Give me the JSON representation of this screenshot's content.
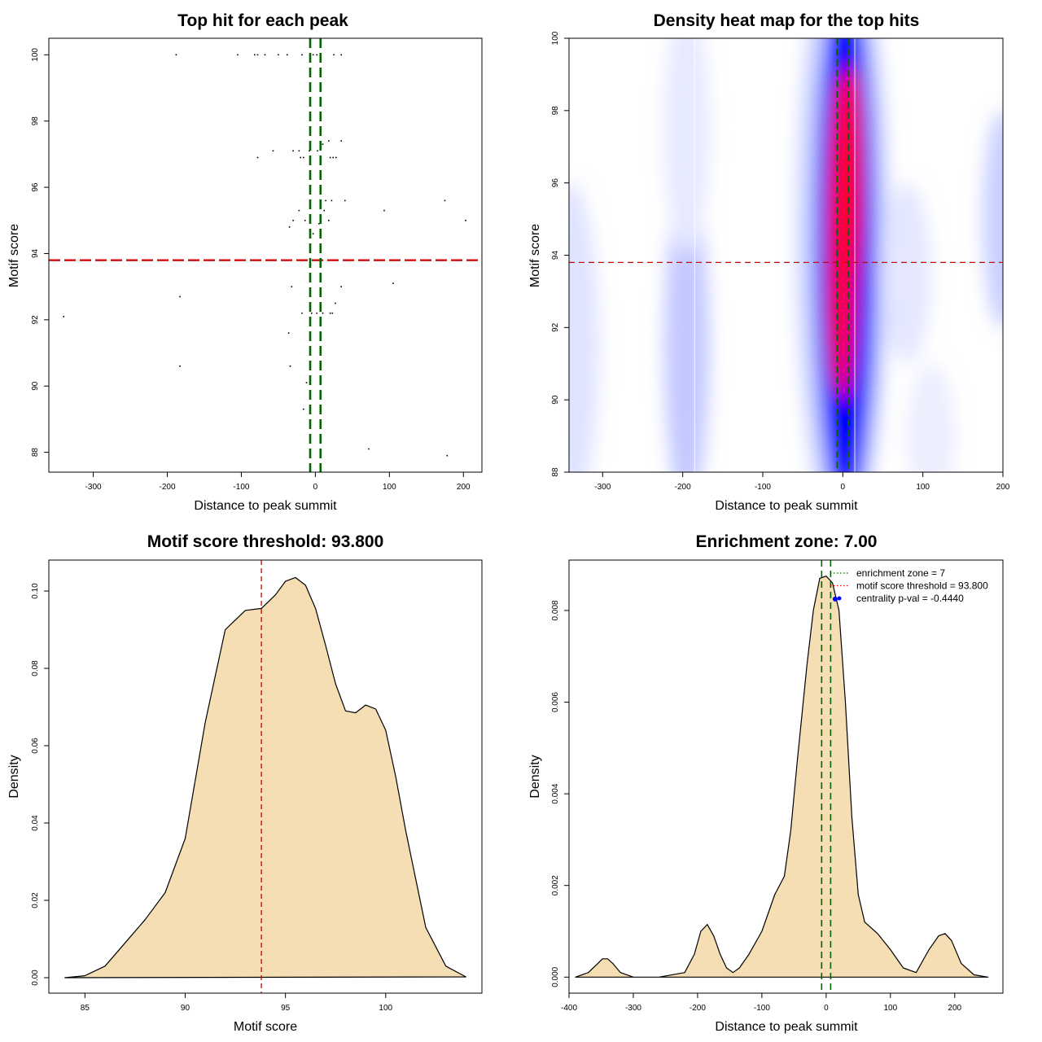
{
  "chart_data": [
    {
      "type": "scatter",
      "title": "Top hit for each peak",
      "xlabel": "Distance to peak summit",
      "ylabel": "Motif score",
      "xlim": [
        -360,
        225
      ],
      "ylim": [
        87.4,
        100.5
      ],
      "xticks": [
        -300,
        -200,
        -100,
        0,
        100,
        200
      ],
      "yticks": [
        88,
        90,
        92,
        94,
        96,
        98,
        100
      ],
      "xtick_labels": [
        "-300",
        "-200",
        "-100",
        "0",
        "100",
        "200"
      ],
      "ytick_labels": [
        "88",
        "90",
        "92",
        "94",
        "96",
        "98",
        "100"
      ],
      "threshold_y": 93.8,
      "zone_x": [
        -7,
        7
      ],
      "points": [
        [
          -188,
          100
        ],
        [
          -105,
          100
        ],
        [
          -82,
          100
        ],
        [
          -78,
          100
        ],
        [
          -68,
          100
        ],
        [
          -50,
          100
        ],
        [
          -38,
          100
        ],
        [
          -18,
          100
        ],
        [
          -3,
          100
        ],
        [
          2,
          100
        ],
        [
          25,
          100
        ],
        [
          35,
          100
        ],
        [
          -78,
          96.9
        ],
        [
          -57,
          97.1
        ],
        [
          -30,
          97.1
        ],
        [
          -22,
          97.1
        ],
        [
          -20,
          96.9
        ],
        [
          -16,
          96.9
        ],
        [
          -8,
          97.1
        ],
        [
          3,
          97.1
        ],
        [
          10,
          97.3
        ],
        [
          18,
          97.4
        ],
        [
          20,
          96.9
        ],
        [
          24,
          96.9
        ],
        [
          28,
          96.9
        ],
        [
          35,
          97.4
        ],
        [
          14,
          95.6
        ],
        [
          22,
          95.6
        ],
        [
          40,
          95.6
        ],
        [
          175,
          95.6
        ],
        [
          -22,
          95.3
        ],
        [
          12,
          95.3
        ],
        [
          93,
          95.3
        ],
        [
          -30,
          95.0
        ],
        [
          -14,
          95.0
        ],
        [
          18,
          95.0
        ],
        [
          203,
          95.0
        ],
        [
          -35,
          94.8
        ],
        [
          5,
          94.9
        ],
        [
          -3,
          94.6
        ],
        [
          -32,
          93.0
        ],
        [
          35,
          93.0
        ],
        [
          105,
          93.1
        ],
        [
          -183,
          92.7
        ],
        [
          27,
          92.5
        ],
        [
          -340,
          92.1
        ],
        [
          -18,
          92.2
        ],
        [
          -5,
          92.2
        ],
        [
          2,
          92.2
        ],
        [
          10,
          92.2
        ],
        [
          20,
          92.2
        ],
        [
          23,
          92.2
        ],
        [
          -36,
          91.6
        ],
        [
          -183,
          90.6
        ],
        [
          -34,
          90.6
        ],
        [
          -12,
          90.1
        ],
        [
          -16,
          89.3
        ],
        [
          72,
          88.1
        ],
        [
          178,
          87.9
        ]
      ]
    },
    {
      "type": "heatmap",
      "title": "Density heat map for the top hits",
      "xlabel": "Distance to peak summit",
      "ylabel": "Motif score",
      "xlim": [
        -342,
        200
      ],
      "ylim": [
        88,
        100
      ],
      "xticks": [
        -300,
        -200,
        -100,
        0,
        100,
        200
      ],
      "yticks": [
        88,
        90,
        92,
        94,
        96,
        98,
        100
      ],
      "xtick_labels": [
        "-300",
        "-200",
        "-100",
        "0",
        "100",
        "200"
      ],
      "ytick_labels": [
        "88",
        "90",
        "92",
        "94",
        "96",
        "98",
        "100"
      ],
      "threshold_y": 93.8,
      "zone_x": [
        -7,
        7
      ],
      "colors": [
        "#ffffff",
        "#0000ff",
        "#ff0000"
      ]
    },
    {
      "type": "area",
      "title": "Motif score threshold: 93.800",
      "xlabel": "Motif score",
      "ylabel": "Density",
      "xlim": [
        83.2,
        104.8
      ],
      "ylim": [
        -0.004,
        0.108
      ],
      "xticks": [
        85,
        90,
        95,
        100
      ],
      "yticks": [
        0,
        0.02,
        0.04,
        0.06,
        0.08,
        0.1
      ],
      "xtick_labels": [
        "85",
        "90",
        "95",
        "100"
      ],
      "ytick_labels": [
        "0.00",
        "0.02",
        "0.04",
        "0.06",
        "0.08",
        "0.10"
      ],
      "threshold_x": 93.8,
      "fill_color": "#f5deb3",
      "x": [
        84,
        85,
        86,
        87,
        88,
        89,
        90,
        91,
        92,
        93,
        93.8,
        94.5,
        95,
        95.5,
        96,
        96.5,
        97,
        97.5,
        98,
        98.5,
        99,
        99.5,
        100,
        100.5,
        101,
        102,
        103,
        104
      ],
      "y": [
        0,
        0.0005,
        0.003,
        0.009,
        0.015,
        0.022,
        0.036,
        0.066,
        0.09,
        0.095,
        0.0955,
        0.099,
        0.1025,
        0.1035,
        0.1015,
        0.0955,
        0.086,
        0.076,
        0.069,
        0.0685,
        0.0705,
        0.0695,
        0.064,
        0.052,
        0.038,
        0.013,
        0.003,
        0.0002
      ]
    },
    {
      "type": "area",
      "title": "Enrichment zone: 7.00",
      "xlabel": "Distance to peak summit",
      "ylabel": "Density",
      "xlim": [
        -400,
        275
      ],
      "ylim": [
        -0.00035,
        0.0091
      ],
      "xticks": [
        -400,
        -300,
        -200,
        -100,
        0,
        100,
        200
      ],
      "yticks": [
        0,
        0.002,
        0.004,
        0.006,
        0.008
      ],
      "xtick_labels": [
        "-400",
        "-300",
        "-200",
        "-100",
        "0",
        "100",
        "200"
      ],
      "ytick_labels": [
        "0.000",
        "0.002",
        "0.004",
        "0.006",
        "0.008"
      ],
      "zone_x": [
        -7,
        7
      ],
      "fill_color": "#f5deb3",
      "x": [
        -390,
        -370,
        -355,
        -348,
        -340,
        -332,
        -320,
        -300,
        -260,
        -220,
        -205,
        -195,
        -185,
        -175,
        -165,
        -155,
        -145,
        -135,
        -120,
        -100,
        -80,
        -65,
        -55,
        -45,
        -30,
        -20,
        -10,
        0,
        10,
        20,
        30,
        40,
        50,
        60,
        80,
        100,
        120,
        140,
        160,
        175,
        185,
        195,
        210,
        230,
        252
      ],
      "y": [
        0,
        0.0001,
        0.0003,
        0.0004,
        0.0004,
        0.0003,
        0.0001,
        0,
        0,
        0.0001,
        0.0005,
        0.001,
        0.00115,
        0.0009,
        0.0005,
        0.0002,
        0.0001,
        0.0002,
        0.0005,
        0.001,
        0.0018,
        0.0022,
        0.0032,
        0.0047,
        0.0068,
        0.008,
        0.0087,
        0.00875,
        0.0086,
        0.008,
        0.006,
        0.0035,
        0.0018,
        0.0012,
        0.00095,
        0.0006,
        0.0002,
        0.0001,
        0.0006,
        0.0009,
        0.00095,
        0.0008,
        0.0003,
        5e-05,
        0
      ],
      "legend": [
        {
          "label": "enrichment zone = 7",
          "color": "#006400",
          "style": "dotted"
        },
        {
          "label": "motif score threshold = 93.800",
          "color": "#ff0000",
          "style": "dotted"
        },
        {
          "label": "centrality p-val = -0.4440",
          "color": "#0000ff",
          "style": "point"
        }
      ],
      "legend_position": "top-right",
      "marker": {
        "x": 14,
        "y": 0.00825
      }
    }
  ]
}
